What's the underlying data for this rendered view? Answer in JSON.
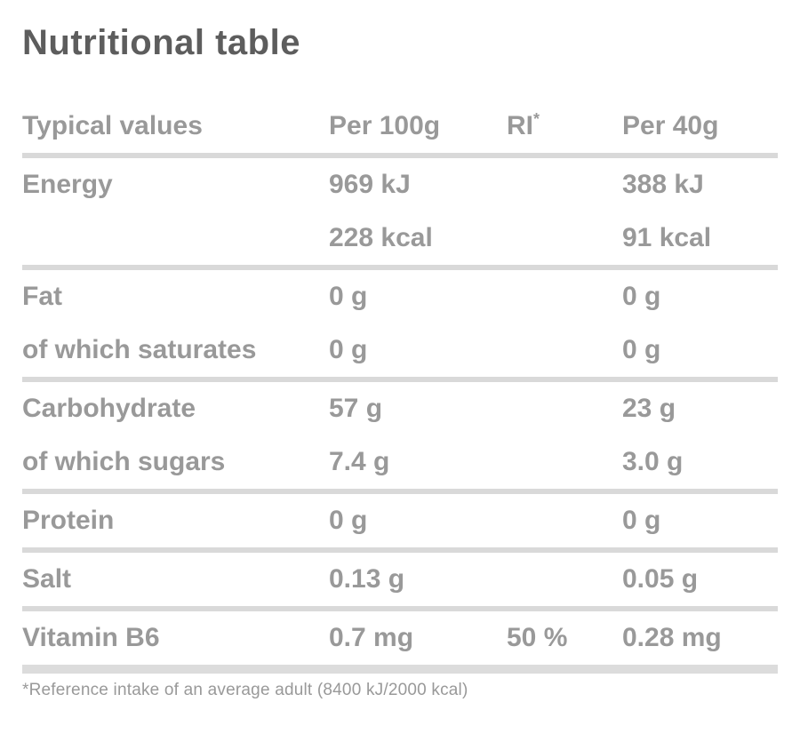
{
  "title": "Nutritional table",
  "table": {
    "headers": {
      "col1": "Typical values",
      "col2": "Per 100g",
      "col3_base": "RI",
      "col3_sup": "*",
      "col4": "Per 40g"
    },
    "rows": [
      {
        "label": "Energy",
        "per_100g": "969 kJ",
        "ri": "",
        "per_40g": "388 kJ"
      },
      {
        "label": "",
        "per_100g": "228 kcal",
        "ri": "",
        "per_40g": "91 kcal"
      },
      {
        "label": "Fat",
        "per_100g": "0 g",
        "ri": "",
        "per_40g": "0 g"
      },
      {
        "label": "of which saturates",
        "per_100g": "0 g",
        "ri": "",
        "per_40g": "0 g"
      },
      {
        "label": "Carbohydrate",
        "per_100g": "57 g",
        "ri": "",
        "per_40g": "23 g"
      },
      {
        "label": "of which sugars",
        "per_100g": "7.4 g",
        "ri": "",
        "per_40g": "3.0 g"
      },
      {
        "label": "Protein",
        "per_100g": "0 g",
        "ri": "",
        "per_40g": "0 g"
      },
      {
        "label": "Salt",
        "per_100g": "0.13 g",
        "ri": "",
        "per_40g": "0.05 g"
      },
      {
        "label": "Vitamin B6",
        "per_100g": "0.7 mg",
        "ri": "50 %",
        "per_40g": "0.28 mg"
      }
    ]
  },
  "footnote": "*Reference intake of an average adult (8400 kJ/2000 kcal)",
  "colors": {
    "title_text": "#5d5d5d",
    "body_text": "#999999",
    "separator": "#d9d9d9",
    "background": "#ffffff"
  }
}
